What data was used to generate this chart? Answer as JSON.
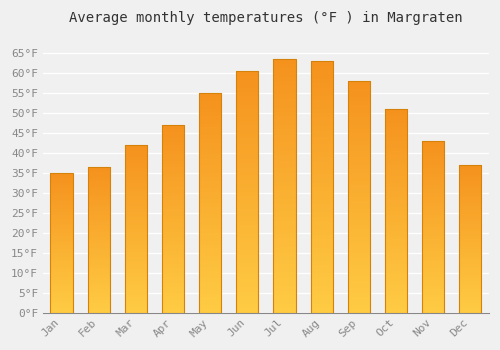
{
  "months": [
    "Jan",
    "Feb",
    "Mar",
    "Apr",
    "May",
    "Jun",
    "Jul",
    "Aug",
    "Sep",
    "Oct",
    "Nov",
    "Dec"
  ],
  "values": [
    35,
    36.5,
    42,
    47,
    55,
    60.5,
    63.5,
    63,
    58,
    51,
    43,
    37
  ],
  "title": "Average monthly temperatures (°F ) in Margraten",
  "bar_color_bright": "#FFCC44",
  "bar_color_dark": "#F5921E",
  "bar_edge_color": "#D4820A",
  "ylim": [
    0,
    70
  ],
  "yticks": [
    0,
    5,
    10,
    15,
    20,
    25,
    30,
    35,
    40,
    45,
    50,
    55,
    60,
    65
  ],
  "ytick_labels": [
    "0°F",
    "5°F",
    "10°F",
    "15°F",
    "20°F",
    "25°F",
    "30°F",
    "35°F",
    "40°F",
    "45°F",
    "50°F",
    "55°F",
    "60°F",
    "65°F"
  ],
  "background_color": "#f0f0f0",
  "grid_color": "#ffffff",
  "title_fontsize": 10,
  "tick_fontsize": 8,
  "bar_width": 0.6
}
